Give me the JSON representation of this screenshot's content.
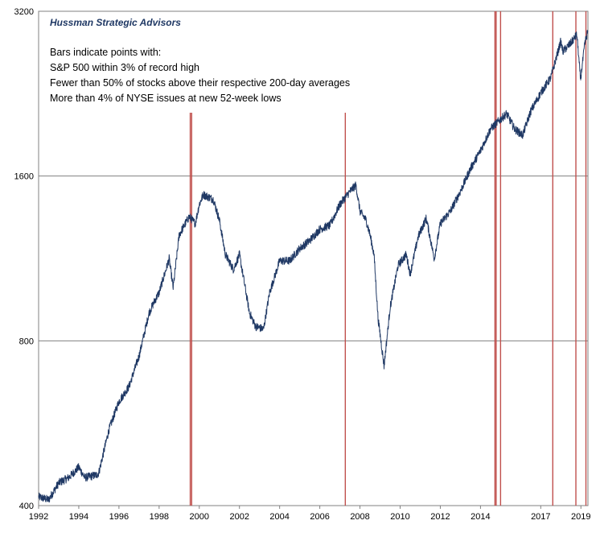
{
  "chart_data": {
    "type": "line",
    "title": "",
    "xlabel": "",
    "ylabel": "",
    "yscale": "log",
    "ylim": [
      400,
      3200
    ],
    "xlim": [
      1992,
      2019.35
    ],
    "y_ticks": [
      400,
      800,
      1600,
      3200
    ],
    "y_tick_labels": [
      "400",
      "800",
      "1600",
      "3200"
    ],
    "x_ticks": [
      1992,
      1994,
      1996,
      1998,
      2000,
      2002,
      2004,
      2006,
      2008,
      2010,
      2012,
      2014,
      2017,
      2019
    ],
    "x_tick_labels": [
      "1992",
      "1994",
      "1996",
      "1998",
      "2000",
      "2002",
      "2004",
      "2006",
      "2008",
      "2010",
      "2012",
      "2014",
      "2017",
      "2019"
    ],
    "grid": "horizontal",
    "brand": "Hussman Strategic Advisors",
    "annotation_lines": [
      "Bars indicate points with:",
      "S&P 500  within 3% of record high",
      "Fewer than 50% of stocks above their respective 200-day averages",
      "More than 4% of  NYSE issues at new 52-week lows"
    ],
    "colors": {
      "series": "#1f3864",
      "bars": "#c0504d",
      "grid": "#808080"
    },
    "series": [
      {
        "x": [
          1992.0,
          1992.5,
          1993.0,
          1993.5,
          1994.0,
          1994.3,
          1994.9,
          1995.0,
          1995.5,
          1996.0,
          1996.5,
          1997.0,
          1997.5,
          1997.8,
          1998.0,
          1998.5,
          1998.7,
          1999.0,
          1999.5,
          1999.8,
          2000.0,
          2000.2,
          2000.7,
          2001.0,
          2001.3,
          2001.7,
          2002.0,
          2002.5,
          2002.8,
          2003.2,
          2003.5,
          2004.0,
          2004.5,
          2005.0,
          2005.5,
          2006.0,
          2006.5,
          2007.0,
          2007.5,
          2007.8,
          2008.0,
          2008.3,
          2008.5,
          2008.7,
          2008.9,
          2009.2,
          2009.5,
          2009.9,
          2010.3,
          2010.5,
          2010.9,
          2011.3,
          2011.7,
          2012.0,
          2012.5,
          2013.0,
          2013.5,
          2014.0,
          2014.5,
          2014.8,
          2015.3,
          2015.7,
          2016.1,
          2016.5,
          2017.0,
          2017.5,
          2018.0,
          2018.1,
          2018.5,
          2018.8,
          2018.98,
          2019.2,
          2019.35
        ],
        "values": [
          415,
          410,
          440,
          450,
          470,
          450,
          455,
          460,
          550,
          620,
          660,
          750,
          900,
          950,
          980,
          1130,
          1000,
          1250,
          1350,
          1310,
          1420,
          1480,
          1450,
          1330,
          1150,
          1080,
          1150,
          900,
          850,
          840,
          980,
          1120,
          1120,
          1180,
          1220,
          1280,
          1300,
          1420,
          1500,
          1540,
          1380,
          1330,
          1250,
          1150,
          880,
          720,
          920,
          1100,
          1150,
          1060,
          1240,
          1340,
          1130,
          1310,
          1380,
          1500,
          1650,
          1780,
          1950,
          2000,
          2080,
          1950,
          1900,
          2100,
          2270,
          2420,
          2820,
          2700,
          2800,
          2900,
          2400,
          2800,
          2950
        ]
      }
    ],
    "highlight_bars": [
      1999.55,
      1999.62,
      2007.27,
      2014.72,
      2014.78,
      2015.0,
      2017.6,
      2018.75,
      2019.25
    ]
  }
}
